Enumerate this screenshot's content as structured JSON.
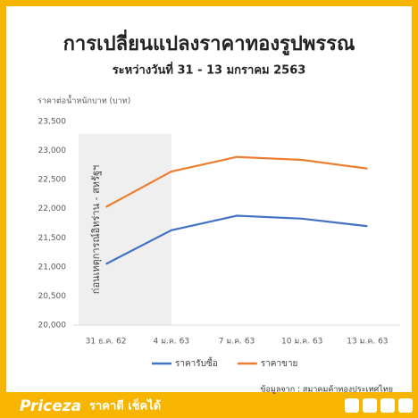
{
  "chart_data": {
    "type": "line",
    "title": "การเปลี่ยนแปลงราคาทองรูปพรรณ",
    "subtitle": "ระหว่างวันที่ 31 - 13 มกราคม 2563",
    "y_label": "ราคาต่อน้ำหนักบาท (บาท)",
    "annotation": "ก่อนเหตุการณ์อิหร่าน - สหรัฐฯ",
    "source": "ข้อมูลจาก : สมาคมค้าทองประเทศไทย",
    "categories": [
      "31 ธ.ค. 62",
      "4 ม.ค. 63",
      "7 ม.ค. 63",
      "10 ม.ค. 63",
      "13 ม.ค. 63"
    ],
    "series": [
      {
        "name": "ราคารับซื้อ",
        "color": "#4472c4",
        "values": [
          21050,
          21630,
          21880,
          21830,
          21700
        ]
      },
      {
        "name": "ราคาขาย",
        "color": "#ed7d31",
        "values": [
          22030,
          22640,
          22890,
          22840,
          22690
        ]
      }
    ],
    "ylim": [
      20000,
      23500
    ],
    "yticks": [
      {
        "value": 20000,
        "label": "20,000"
      },
      {
        "value": 20500,
        "label": "20,500"
      },
      {
        "value": 21000,
        "label": "21,000"
      },
      {
        "value": 21500,
        "label": "21,500"
      },
      {
        "value": 22000,
        "label": "22,000"
      },
      {
        "value": 22500,
        "label": "22,500"
      },
      {
        "value": 23000,
        "label": "23,000"
      },
      {
        "value": 23500,
        "label": "23,500"
      }
    ],
    "grid": false,
    "legend": "bottom"
  },
  "footer": {
    "brand": "Priceza",
    "slogan": "ราคาดี เช็คได้"
  }
}
